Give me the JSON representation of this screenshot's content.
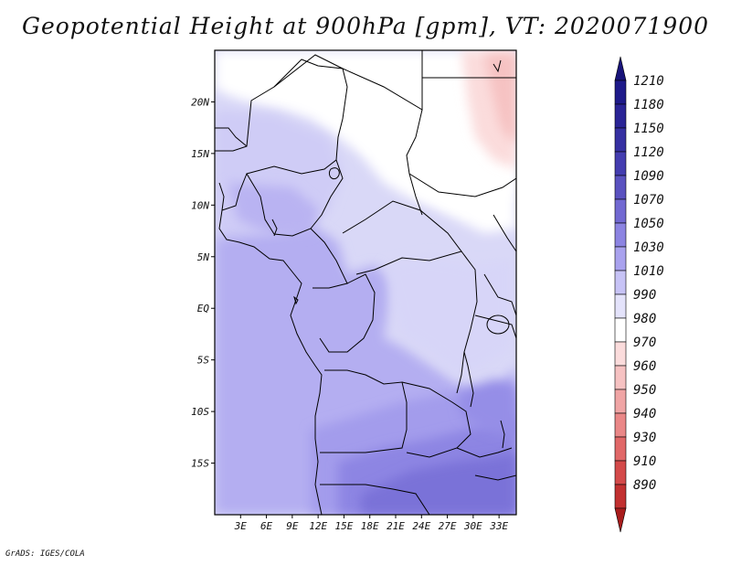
{
  "title": "Geopotential Height at 900hPa [gpm], VT: 2020071900",
  "credit": "GrADS: IGES/COLA",
  "map": {
    "lat_ticks": [
      {
        "label": "20N",
        "lat": 20
      },
      {
        "label": "15N",
        "lat": 15
      },
      {
        "label": "10N",
        "lat": 10
      },
      {
        "label": "5N",
        "lat": 5
      },
      {
        "label": "EQ",
        "lat": 0
      },
      {
        "label": "5S",
        "lat": -5
      },
      {
        "label": "10S",
        "lat": -10
      },
      {
        "label": "15S",
        "lat": -15
      }
    ],
    "lon_ticks": [
      {
        "label": "3E",
        "lon": 3
      },
      {
        "label": "6E",
        "lon": 6
      },
      {
        "label": "9E",
        "lon": 9
      },
      {
        "label": "12E",
        "lon": 12
      },
      {
        "label": "15E",
        "lon": 15
      },
      {
        "label": "18E",
        "lon": 18
      },
      {
        "label": "21E",
        "lon": 21
      },
      {
        "label": "24E",
        "lon": 24
      },
      {
        "label": "27E",
        "lon": 27
      },
      {
        "label": "30E",
        "lon": 30
      },
      {
        "label": "33E",
        "lon": 33
      }
    ],
    "lon_range": [
      0,
      35
    ],
    "lat_range": [
      -20,
      25
    ]
  },
  "colorbar": {
    "levels": [
      {
        "label": "1210",
        "color": "#1e1a8a"
      },
      {
        "label": "1180",
        "color": "#2a2496"
      },
      {
        "label": "1150",
        "color": "#3630a2"
      },
      {
        "label": "1120",
        "color": "#443db0"
      },
      {
        "label": "1090",
        "color": "#5a52c0"
      },
      {
        "label": "1070",
        "color": "#7269d2"
      },
      {
        "label": "1050",
        "color": "#8c84e2"
      },
      {
        "label": "1030",
        "color": "#a9a2ee"
      },
      {
        "label": "1010",
        "color": "#c7c3f6"
      },
      {
        "label": "990",
        "color": "#e4e3fb"
      },
      {
        "label": "980",
        "color": "#ffffff"
      },
      {
        "label": "970",
        "color": "#fbdcdc"
      },
      {
        "label": "960",
        "color": "#f6c2c2"
      },
      {
        "label": "950",
        "color": "#f0a5a5"
      },
      {
        "label": "940",
        "color": "#ea8787"
      },
      {
        "label": "930",
        "color": "#e16868"
      },
      {
        "label": "910",
        "color": "#d44a4a"
      },
      {
        "label": "890",
        "color": "#c23030"
      }
    ],
    "top_triangle_color": "#18137a",
    "bottom_triangle_color": "#a81c1c"
  }
}
